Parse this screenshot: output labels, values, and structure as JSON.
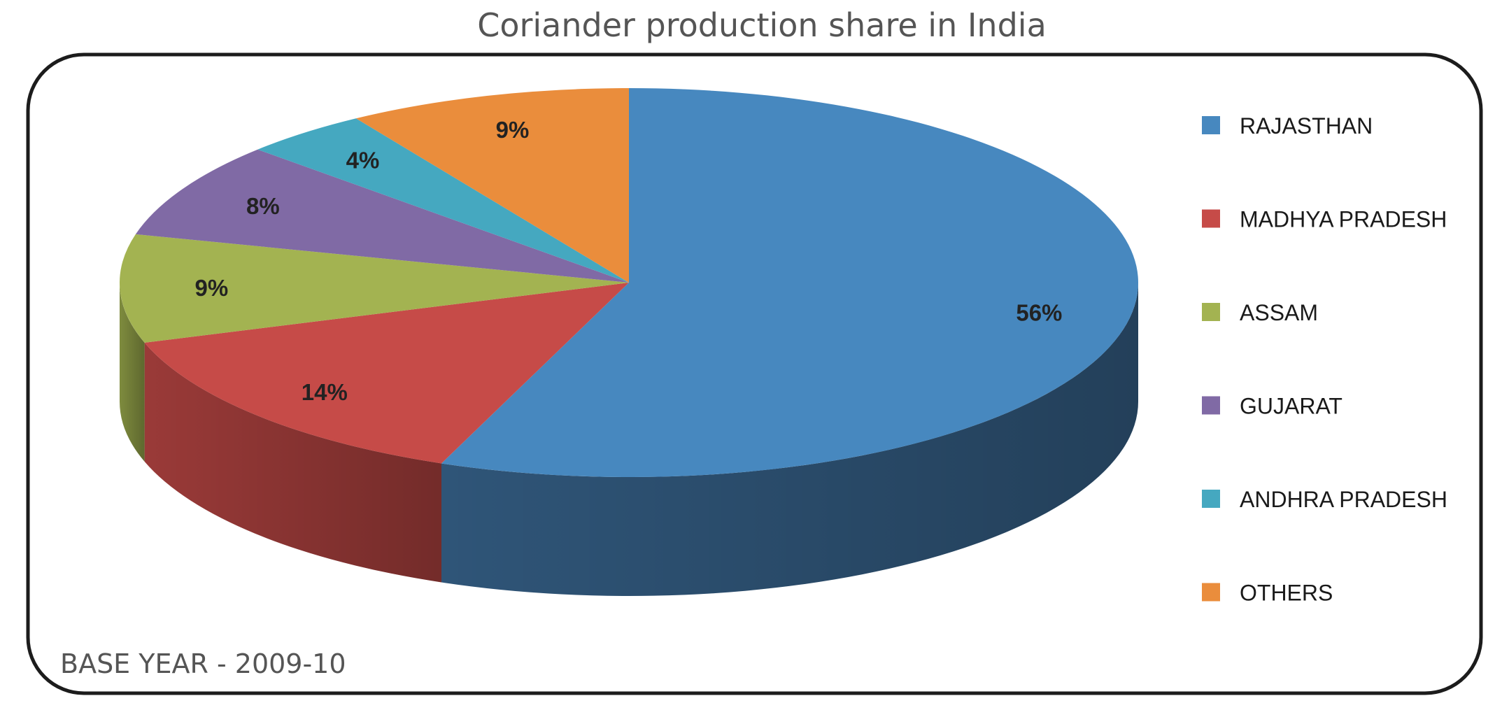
{
  "chart_data": {
    "type": "pie",
    "title": "Coriander production share in India",
    "footnote": "BASE YEAR - 2009-10",
    "legend_position": "right",
    "three_d": true,
    "slices": [
      {
        "name": "RAJASTHAN",
        "value": 56,
        "label": "56%",
        "color": "#4788BF",
        "side_color": "#2F5578"
      },
      {
        "name": "MADHYA PRADESH",
        "value": 14,
        "label": "14%",
        "color": "#C64B48",
        "side_color": "#9A3A38"
      },
      {
        "name": "ASSAM",
        "value": 9,
        "label": "9%",
        "color": "#A3B351",
        "side_color": "#7E8B3E"
      },
      {
        "name": "GUJARAT",
        "value": 8,
        "label": "8%",
        "color": "#806AA5",
        "side_color": "#60507D"
      },
      {
        "name": "ANDHRA PRADESH",
        "value": 4,
        "label": "4%",
        "color": "#45A8C0",
        "side_color": "#33808F"
      },
      {
        "name": "OTHERS",
        "value": 9,
        "label": "9%",
        "color": "#EA8D3C",
        "side_color": "#B36C2E"
      }
    ]
  }
}
